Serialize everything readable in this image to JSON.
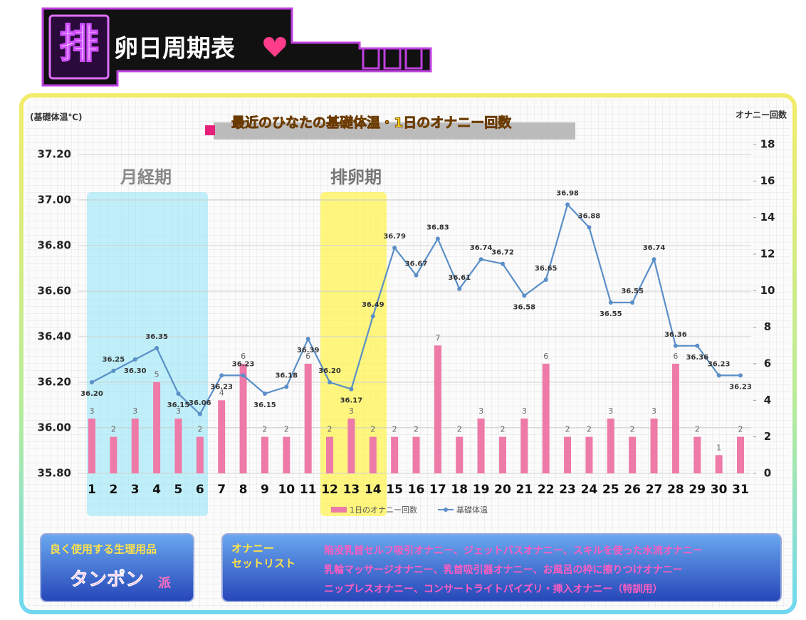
{
  "header": {
    "mark": "排",
    "title": "卵日周期表"
  },
  "chart_data": {
    "type": "bar-line",
    "title": "最近のひなたの基礎体温・1日のオナニー回数",
    "y_label": "(基礎体温℃)",
    "y2_label": "オナニー回数",
    "phases": [
      "月経期",
      "排卵期"
    ],
    "categories": [
      "1",
      "2",
      "3",
      "4",
      "5",
      "6",
      "7",
      "8",
      "9",
      "10",
      "11",
      "12",
      "13",
      "14",
      "15",
      "16",
      "17",
      "18",
      "19",
      "20",
      "21",
      "22",
      "23",
      "24",
      "25",
      "26",
      "27",
      "28",
      "29",
      "30",
      "31"
    ],
    "series": [
      {
        "name": "1日のオナニー回数",
        "color": "#ee7aa8",
        "kind": "bar",
        "axis": "y2",
        "values": [
          3,
          2,
          3,
          5,
          3,
          2,
          4,
          6,
          2,
          2,
          6,
          2,
          3,
          2,
          2,
          2,
          7,
          2,
          3,
          2,
          3,
          6,
          2,
          2,
          3,
          2,
          3,
          6,
          2,
          1,
          2
        ]
      },
      {
        "name": "基礎体温",
        "color": "#5a8fc8",
        "kind": "line",
        "values": [
          36.2,
          36.25,
          36.3,
          36.35,
          36.15,
          36.06,
          36.23,
          36.23,
          36.15,
          36.18,
          36.39,
          36.2,
          36.17,
          36.49,
          36.79,
          36.67,
          36.83,
          36.61,
          36.74,
          36.72,
          36.58,
          36.65,
          36.98,
          36.88,
          36.55,
          36.55,
          36.74,
          36.36,
          36.36,
          36.23,
          36.23
        ],
        "value_labels": [
          "36.20",
          "36.25",
          "36.30",
          "36.35",
          "36.15",
          "36.06",
          "36.23",
          "36.23",
          "36.15",
          "36.18",
          "36.39",
          "36.20",
          "36.17",
          "36.49",
          "36.79",
          "36.67",
          "36.83",
          "36.61",
          "36.74",
          "36.72",
          "36.58",
          "36.65",
          "36.98",
          "36.88",
          "36.55",
          "36.55",
          "36.74",
          "36.36",
          "36.36",
          "36.23",
          "36.23"
        ]
      }
    ],
    "ylim": [
      35.8,
      37.2
    ],
    "yticks": [
      {
        "value": 35.8,
        "label": "35.80"
      },
      {
        "value": 36.0,
        "label": "36.00"
      },
      {
        "value": 36.2,
        "label": "36.20"
      },
      {
        "value": 36.4,
        "label": "36.40"
      },
      {
        "value": 36.6,
        "label": "36.60"
      },
      {
        "value": 36.8,
        "label": "36.80"
      },
      {
        "value": 37.0,
        "label": "37.00"
      },
      {
        "value": 37.2,
        "label": "37.20"
      }
    ],
    "y2lim": [
      0,
      18
    ],
    "y2ticks": [
      0,
      2,
      4,
      6,
      8,
      10,
      12,
      14,
      16,
      18
    ],
    "grid": true
  },
  "panels": {
    "goods_title": "良く使用する生理用品",
    "goods_main": "タンポン",
    "goods_suffix": "派",
    "setlist_title": [
      "オナニー",
      "セットリスト"
    ],
    "setlist": [
      "陥没乳首セルフ吸引オナニー、ジェットバスオナニー、スキルを使った水流オナニー",
      "乳輪マッサージオナニー、乳首吸引器オナニー、お風呂の枠に擦りつけオナニー",
      "ニップレスオナニー、コンサートライトパイズリ・挿入オナニー（特訓用）"
    ]
  }
}
